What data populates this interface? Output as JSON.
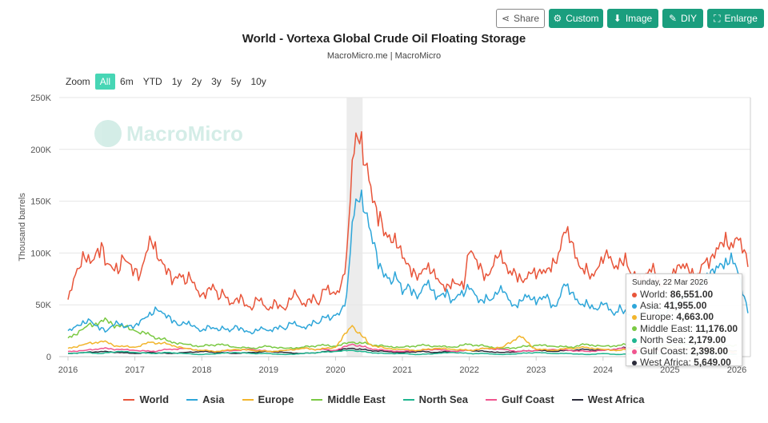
{
  "toolbar": {
    "share": "Share",
    "custom": "Custom",
    "image": "Image",
    "diy": "DIY",
    "enlarge": "Enlarge"
  },
  "range_selector": {
    "label": "Zoom",
    "options": [
      "All",
      "6m",
      "YTD",
      "1y",
      "2y",
      "3y",
      "5y",
      "10y"
    ],
    "selected": "All"
  },
  "watermark": "MacroMicro",
  "tooltip": {
    "date": "Sunday, 22 Mar 2026",
    "rows": [
      {
        "name": "World",
        "value": "86,551.00"
      },
      {
        "name": "Asia",
        "value": "41,955.00"
      },
      {
        "name": "Europe",
        "value": "4,663.00"
      },
      {
        "name": "Middle East",
        "value": "11,176.00"
      },
      {
        "name": "North Sea",
        "value": "2,179.00"
      },
      {
        "name": "Gulf Coast",
        "value": "2,398.00"
      },
      {
        "name": "West Africa",
        "value": "5,649.00"
      }
    ]
  },
  "chart_data": {
    "type": "line",
    "title": "World - Vortexa Global Crude Oil Floating Storage",
    "subtitle": "MacroMicro.me | MacroMicro",
    "ylabel": "Thousand barrels",
    "ylim": [
      0,
      250000
    ],
    "yticks": [
      "0",
      "50K",
      "100K",
      "150K",
      "200K",
      "250K"
    ],
    "xticks": [
      "2016",
      "2017",
      "2018",
      "2019",
      "2020",
      "2021",
      "2022",
      "2023",
      "2024",
      "2025",
      "2026"
    ],
    "xlim": [
      "2016-01",
      "2026-04"
    ],
    "shaded_band": [
      "2020-03",
      "2020-05"
    ],
    "series": [
      {
        "name": "World",
        "color": "#e8553a",
        "start": "2016-01",
        "step_months": 1,
        "values": [
          55,
          75,
          85,
          95,
          90,
          100,
          110,
          90,
          85,
          80,
          95,
          90,
          85,
          80,
          100,
          110,
          95,
          90,
          85,
          75,
          80,
          70,
          75,
          65,
          60,
          65,
          70,
          55,
          60,
          50,
          55,
          60,
          50,
          45,
          55,
          50,
          45,
          55,
          50,
          45,
          55,
          60,
          50,
          55,
          60,
          50,
          65,
          60,
          60,
          70,
          100,
          190,
          210,
          185,
          170,
          150,
          140,
          120,
          110,
          105,
          95,
          90,
          85,
          80,
          85,
          80,
          75,
          70,
          70,
          75,
          70,
          65,
          100,
          95,
          90,
          80,
          85,
          95,
          90,
          80,
          85,
          80,
          75,
          80,
          75,
          80,
          85,
          95,
          100,
          120,
          110,
          95,
          85,
          90,
          80,
          85,
          90,
          95,
          85,
          95,
          100,
          80,
          75,
          70,
          80,
          90,
          75,
          70,
          70,
          80,
          85,
          90,
          85,
          80,
          90,
          85,
          95,
          110,
          120,
          110,
          115,
          100,
          86.551
        ]
      },
      {
        "name": "Asia",
        "color": "#2ea6d9",
        "start": "2016-01",
        "step_months": 1,
        "values": [
          25,
          28,
          30,
          32,
          35,
          30,
          28,
          25,
          30,
          32,
          28,
          30,
          30,
          35,
          38,
          40,
          45,
          42,
          40,
          35,
          30,
          32,
          30,
          28,
          25,
          30,
          28,
          25,
          27,
          24,
          30,
          28,
          25,
          22,
          25,
          27,
          25,
          28,
          30,
          26,
          32,
          30,
          28,
          30,
          35,
          32,
          38,
          35,
          40,
          45,
          60,
          130,
          150,
          140,
          125,
          110,
          90,
          80,
          70,
          75,
          60,
          70,
          65,
          60,
          70,
          65,
          55,
          60,
          65,
          55,
          60,
          58,
          65,
          60,
          55,
          60,
          55,
          60,
          62,
          55,
          50,
          55,
          60,
          55,
          50,
          55,
          60,
          50,
          55,
          70,
          60,
          55,
          50,
          55,
          50,
          45,
          50,
          45,
          40,
          50,
          45,
          40,
          35,
          40,
          45,
          50,
          45,
          40,
          45,
          50,
          55,
          60,
          55,
          65,
          70,
          75,
          80,
          90,
          95,
          100,
          85,
          60,
          41.955
        ]
      },
      {
        "name": "Europe",
        "color": "#f2b52c",
        "start": "2016-01",
        "step_months": 3,
        "values": [
          8,
          12,
          15,
          10,
          9,
          14,
          12,
          8,
          6,
          5,
          7,
          6,
          5,
          6,
          8,
          7,
          9,
          30,
          12,
          8,
          7,
          6,
          8,
          7,
          6,
          8,
          9,
          20,
          7,
          6,
          8,
          9,
          7,
          6,
          8,
          7,
          9,
          8,
          7,
          6,
          4.663
        ]
      },
      {
        "name": "Middle East",
        "color": "#7ac943",
        "start": "2016-01",
        "step_months": 3,
        "values": [
          18,
          28,
          35,
          30,
          25,
          20,
          15,
          12,
          10,
          12,
          9,
          8,
          10,
          8,
          9,
          11,
          10,
          14,
          12,
          10,
          9,
          11,
          10,
          9,
          12,
          10,
          8,
          9,
          11,
          10,
          9,
          12,
          10,
          11,
          12,
          10,
          11,
          12,
          10,
          11,
          11.176
        ]
      },
      {
        "name": "North Sea",
        "color": "#1fb58f",
        "start": "2016-01",
        "step_months": 3,
        "values": [
          3,
          4,
          3,
          5,
          4,
          3,
          4,
          3,
          2,
          3,
          4,
          3,
          3,
          2,
          3,
          4,
          5,
          6,
          4,
          3,
          3,
          2,
          3,
          4,
          3,
          3,
          2,
          3,
          4,
          3,
          3,
          2,
          3,
          2,
          3,
          2,
          3,
          3,
          2,
          3,
          2.179
        ]
      },
      {
        "name": "Gulf Coast",
        "color": "#f0558f",
        "start": "2016-01",
        "step_months": 3,
        "values": [
          5,
          6,
          8,
          7,
          6,
          5,
          7,
          8,
          6,
          5,
          6,
          7,
          5,
          6,
          8,
          7,
          6,
          12,
          8,
          6,
          5,
          6,
          7,
          5,
          6,
          8,
          7,
          5,
          6,
          7,
          6,
          5,
          6,
          8,
          7,
          6,
          5,
          7,
          9,
          8,
          2.398
        ]
      },
      {
        "name": "West Africa",
        "color": "#2b2b3a",
        "start": "2016-01",
        "step_months": 3,
        "values": [
          3,
          4,
          5,
          4,
          3,
          4,
          3,
          4,
          5,
          4,
          3,
          4,
          5,
          4,
          3,
          4,
          6,
          8,
          6,
          5,
          4,
          5,
          4,
          5,
          6,
          5,
          4,
          5,
          6,
          5,
          6,
          7,
          6,
          8,
          9,
          7,
          6,
          7,
          8,
          6,
          5.649
        ]
      }
    ]
  }
}
